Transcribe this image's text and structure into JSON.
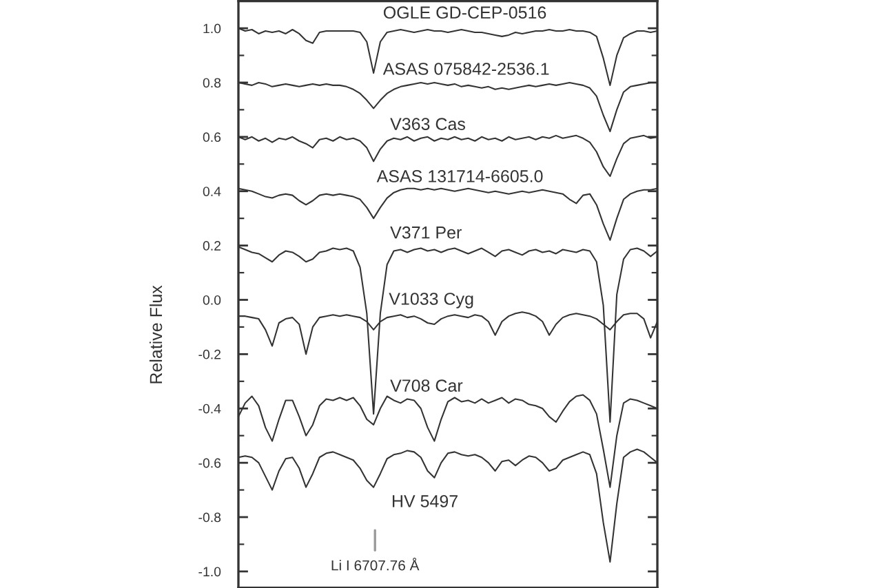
{
  "chart_data": {
    "type": "line",
    "ylabel": "Relative Flux",
    "tick_labels": "y",
    "categories": [
      null,
      null,
      null,
      null,
      null,
      null,
      null,
      null,
      null,
      null,
      null,
      null,
      null,
      null,
      null,
      null,
      null,
      null,
      null,
      null,
      null,
      null,
      null,
      null,
      null,
      null,
      null,
      null,
      null,
      null,
      null,
      null,
      null,
      null,
      null,
      null,
      null,
      null,
      null,
      null,
      null,
      null,
      null,
      null,
      null,
      null,
      null,
      null,
      null,
      null,
      null,
      null,
      null,
      null,
      null,
      null,
      null,
      null,
      null,
      null,
      null,
      null,
      null
    ],
    "ylim": [
      -1.06,
      1.1
    ],
    "yticks": [
      {
        "value": 1.0,
        "label": "1.0"
      },
      {
        "value": 0.9,
        "label": null
      },
      {
        "value": 0.8,
        "label": "0.8"
      },
      {
        "value": 0.7,
        "label": null
      },
      {
        "value": 0.6,
        "label": "0.6"
      },
      {
        "value": 0.5,
        "label": null
      },
      {
        "value": 0.4,
        "label": "0.4"
      },
      {
        "value": 0.3,
        "label": null
      },
      {
        "value": 0.2,
        "label": "0.2"
      },
      {
        "value": 0.1,
        "label": null
      },
      {
        "value": 0.0,
        "label": "0.0"
      },
      {
        "value": -0.1,
        "label": null
      },
      {
        "value": -0.2,
        "label": "-0.2"
      },
      {
        "value": -0.3,
        "label": null
      },
      {
        "value": -0.4,
        "label": "-0.4"
      },
      {
        "value": -0.5,
        "label": null
      },
      {
        "value": -0.6,
        "label": "-0.6"
      },
      {
        "value": -0.7,
        "label": null
      },
      {
        "value": -0.8,
        "label": "-0.8"
      },
      {
        "value": -0.9,
        "label": null
      },
      {
        "value": -1.0,
        "label": "-1.0"
      }
    ],
    "series": [
      {
        "name": "OGLE GD-CEP-0516",
        "color": "#333333",
        "values": [
          1.0,
          0.99,
          0.995,
          0.98,
          0.99,
          0.985,
          0.99,
          0.98,
          0.995,
          0.98,
          0.955,
          0.945,
          0.985,
          0.99,
          0.99,
          0.99,
          0.99,
          0.99,
          0.985,
          0.95,
          0.835,
          0.95,
          0.985,
          0.99,
          0.995,
          0.99,
          0.985,
          0.99,
          0.995,
          0.99,
          0.99,
          0.985,
          0.99,
          0.995,
          0.99,
          0.985,
          0.985,
          0.98,
          0.975,
          0.97,
          0.975,
          0.985,
          0.98,
          0.985,
          0.99,
          0.99,
          0.995,
          0.99,
          0.99,
          0.995,
          0.99,
          0.99,
          0.985,
          0.97,
          0.89,
          0.79,
          0.9,
          0.965,
          0.98,
          0.99,
          0.99,
          0.985,
          0.99
        ]
      },
      {
        "name": "ASAS 075842-2536.1",
        "color": "#333333",
        "values": [
          0.8,
          0.795,
          0.79,
          0.8,
          0.795,
          0.785,
          0.79,
          0.795,
          0.79,
          0.785,
          0.79,
          0.795,
          0.79,
          0.795,
          0.79,
          0.79,
          0.785,
          0.775,
          0.76,
          0.735,
          0.705,
          0.735,
          0.76,
          0.775,
          0.785,
          0.79,
          0.795,
          0.8,
          0.795,
          0.8,
          0.795,
          0.79,
          0.795,
          0.785,
          0.79,
          0.785,
          0.78,
          0.785,
          0.775,
          0.78,
          0.775,
          0.78,
          0.785,
          0.79,
          0.785,
          0.79,
          0.795,
          0.79,
          0.795,
          0.8,
          0.795,
          0.79,
          0.78,
          0.75,
          0.68,
          0.62,
          0.7,
          0.765,
          0.785,
          0.79,
          0.795,
          0.8,
          0.8
        ]
      },
      {
        "name": "V363 Cas",
        "color": "#333333",
        "values": [
          0.6,
          0.59,
          0.6,
          0.585,
          0.595,
          0.58,
          0.595,
          0.59,
          0.6,
          0.585,
          0.575,
          0.56,
          0.59,
          0.595,
          0.585,
          0.6,
          0.59,
          0.595,
          0.585,
          0.56,
          0.51,
          0.555,
          0.585,
          0.595,
          0.59,
          0.6,
          0.585,
          0.595,
          0.6,
          0.585,
          0.595,
          0.59,
          0.6,
          0.59,
          0.595,
          0.585,
          0.6,
          0.59,
          0.595,
          0.585,
          0.6,
          0.59,
          0.595,
          0.6,
          0.59,
          0.6,
          0.595,
          0.605,
          0.595,
          0.6,
          0.605,
          0.595,
          0.58,
          0.545,
          0.49,
          0.455,
          0.52,
          0.575,
          0.595,
          0.6,
          0.605,
          0.595,
          0.6
        ]
      },
      {
        "name": "ASAS 131714-6605.0",
        "color": "#333333",
        "values": [
          0.41,
          0.405,
          0.4,
          0.39,
          0.38,
          0.375,
          0.385,
          0.39,
          0.385,
          0.365,
          0.35,
          0.365,
          0.385,
          0.39,
          0.385,
          0.39,
          0.385,
          0.38,
          0.37,
          0.34,
          0.3,
          0.34,
          0.375,
          0.395,
          0.405,
          0.41,
          0.41,
          0.405,
          0.41,
          0.405,
          0.41,
          0.405,
          0.4,
          0.405,
          0.41,
          0.405,
          0.4,
          0.395,
          0.4,
          0.395,
          0.39,
          0.395,
          0.4,
          0.395,
          0.4,
          0.405,
          0.4,
          0.395,
          0.39,
          0.37,
          0.355,
          0.385,
          0.39,
          0.35,
          0.28,
          0.22,
          0.3,
          0.37,
          0.39,
          0.4,
          0.405,
          0.405,
          0.41
        ]
      },
      {
        "name": "V371 Per",
        "color": "#333333",
        "values": [
          0.195,
          0.185,
          0.175,
          0.17,
          0.155,
          0.14,
          0.165,
          0.18,
          0.175,
          0.16,
          0.14,
          0.15,
          0.175,
          0.18,
          0.19,
          0.185,
          0.19,
          0.18,
          0.12,
          -0.05,
          -0.42,
          -0.05,
          0.13,
          0.18,
          0.185,
          0.175,
          0.185,
          0.19,
          0.18,
          0.185,
          0.175,
          0.185,
          0.19,
          0.18,
          0.17,
          0.18,
          0.19,
          0.175,
          0.16,
          0.18,
          0.185,
          0.175,
          0.165,
          0.18,
          0.185,
          0.175,
          0.18,
          0.17,
          0.185,
          0.18,
          0.175,
          0.185,
          0.18,
          0.14,
          -0.02,
          -0.45,
          0.02,
          0.15,
          0.185,
          0.19,
          0.18,
          0.16,
          0.18
        ]
      },
      {
        "name": "V1033 Cyg",
        "color": "#333333",
        "values": [
          -0.06,
          -0.06,
          -0.065,
          -0.07,
          -0.11,
          -0.17,
          -0.085,
          -0.07,
          -0.065,
          -0.09,
          -0.2,
          -0.1,
          -0.065,
          -0.06,
          -0.055,
          -0.06,
          -0.055,
          -0.06,
          -0.065,
          -0.08,
          -0.11,
          -0.08,
          -0.065,
          -0.06,
          -0.055,
          -0.065,
          -0.06,
          -0.07,
          -0.085,
          -0.09,
          -0.07,
          -0.06,
          -0.055,
          -0.06,
          -0.065,
          -0.055,
          -0.06,
          -0.08,
          -0.13,
          -0.08,
          -0.06,
          -0.05,
          -0.045,
          -0.05,
          -0.06,
          -0.08,
          -0.13,
          -0.09,
          -0.065,
          -0.055,
          -0.05,
          -0.055,
          -0.06,
          -0.07,
          -0.09,
          -0.11,
          -0.08,
          -0.055,
          -0.05,
          -0.05,
          -0.07,
          -0.14,
          -0.08
        ]
      },
      {
        "name": "V708 Car",
        "color": "#333333",
        "values": [
          -0.43,
          -0.38,
          -0.355,
          -0.39,
          -0.47,
          -0.52,
          -0.44,
          -0.37,
          -0.37,
          -0.43,
          -0.5,
          -0.46,
          -0.39,
          -0.365,
          -0.37,
          -0.36,
          -0.37,
          -0.36,
          -0.39,
          -0.44,
          -0.46,
          -0.4,
          -0.355,
          -0.37,
          -0.38,
          -0.365,
          -0.37,
          -0.4,
          -0.47,
          -0.52,
          -0.44,
          -0.375,
          -0.36,
          -0.375,
          -0.37,
          -0.38,
          -0.365,
          -0.38,
          -0.37,
          -0.36,
          -0.38,
          -0.365,
          -0.37,
          -0.385,
          -0.39,
          -0.4,
          -0.43,
          -0.45,
          -0.41,
          -0.375,
          -0.355,
          -0.35,
          -0.37,
          -0.42,
          -0.55,
          -0.69,
          -0.5,
          -0.38,
          -0.365,
          -0.37,
          -0.38,
          -0.39,
          -0.4
        ]
      },
      {
        "name": "HV 5497",
        "color": "#333333",
        "values": [
          -0.58,
          -0.575,
          -0.58,
          -0.6,
          -0.65,
          -0.7,
          -0.63,
          -0.585,
          -0.58,
          -0.62,
          -0.69,
          -0.64,
          -0.58,
          -0.565,
          -0.56,
          -0.57,
          -0.58,
          -0.59,
          -0.62,
          -0.665,
          -0.69,
          -0.64,
          -0.585,
          -0.57,
          -0.565,
          -0.555,
          -0.56,
          -0.58,
          -0.63,
          -0.655,
          -0.6,
          -0.565,
          -0.56,
          -0.57,
          -0.575,
          -0.57,
          -0.58,
          -0.6,
          -0.63,
          -0.595,
          -0.59,
          -0.61,
          -0.59,
          -0.575,
          -0.58,
          -0.6,
          -0.63,
          -0.62,
          -0.59,
          -0.58,
          -0.57,
          -0.56,
          -0.57,
          -0.64,
          -0.82,
          -0.965,
          -0.75,
          -0.58,
          -0.56,
          -0.55,
          -0.56,
          -0.58,
          -0.6
        ]
      }
    ],
    "annotations": [
      "Li I 6707.76 Å"
    ]
  }
}
